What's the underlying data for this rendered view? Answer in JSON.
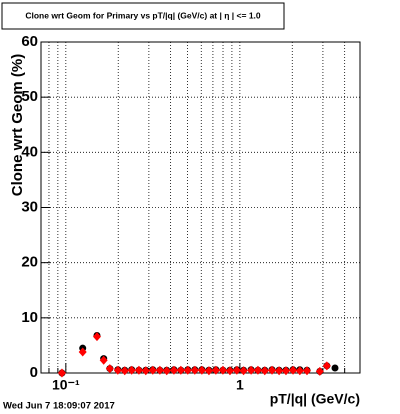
{
  "chart_data": {
    "type": "scatter",
    "title": "Clone wrt Geom for Primary vs pT/|q| (GeV/c) at | η | <= 1.0",
    "xlabel": "pT/|q| (GeV/c)",
    "ylabel": "Clone wrt Geom (%)",
    "footer": "Wed Jun  7 18:09:07 2017",
    "xscale": "log",
    "grid": true,
    "xlim": [
      0.072,
      4.9
    ],
    "ylim": [
      0,
      60
    ],
    "xticks": [
      {
        "value": 0.1,
        "label": "10⁻¹"
      },
      1
    ],
    "xminorticks": [
      0.08,
      0.09,
      0.2,
      0.3,
      0.4,
      0.5,
      0.6,
      0.7,
      0.8,
      0.9,
      2,
      3,
      4
    ],
    "yticks": [
      0,
      10,
      20,
      30,
      40,
      50,
      60
    ],
    "x": [
      0.095,
      0.125,
      0.151,
      0.165,
      0.179,
      0.199,
      0.218,
      0.239,
      0.263,
      0.288,
      0.316,
      0.347,
      0.38,
      0.418,
      0.458,
      0.502,
      0.551,
      0.605,
      0.664,
      0.728,
      0.799,
      0.877,
      0.961,
      1.05,
      1.16,
      1.27,
      1.39,
      1.53,
      1.68,
      1.84,
      2.02,
      2.21,
      2.43,
      2.88,
      3.16,
      3.52
    ],
    "series": [
      {
        "color": "#000000",
        "marker": "circle",
        "values": [
          0,
          4.5,
          6.8,
          2.6,
          0.8,
          0.6,
          0.5,
          0.6,
          0.5,
          0.5,
          0.6,
          0.5,
          0.5,
          0.6,
          0.5,
          0.6,
          0.6,
          0.6,
          0.5,
          0.6,
          0.5,
          0.5,
          0.6,
          0.5,
          0.6,
          0.5,
          0.5,
          0.6,
          0.5,
          0.5,
          0.6,
          0.6,
          0.5,
          0.3,
          1.3,
          0.9
        ]
      },
      {
        "color": "#ff0000",
        "marker": "diamond",
        "values": [
          0,
          3.8,
          6.6,
          2.3,
          0.8,
          0.5,
          0.4,
          0.5,
          0.5,
          0.4,
          0.5,
          0.5,
          0.4,
          0.5,
          0.5,
          0.5,
          0.5,
          0.5,
          0.4,
          0.5,
          0.5,
          0.4,
          0.5,
          0.4,
          0.5,
          0.5,
          0.4,
          0.5,
          0.4,
          0.4,
          0.5,
          0.4,
          0.4,
          0.3,
          1.3,
          null
        ]
      }
    ]
  }
}
